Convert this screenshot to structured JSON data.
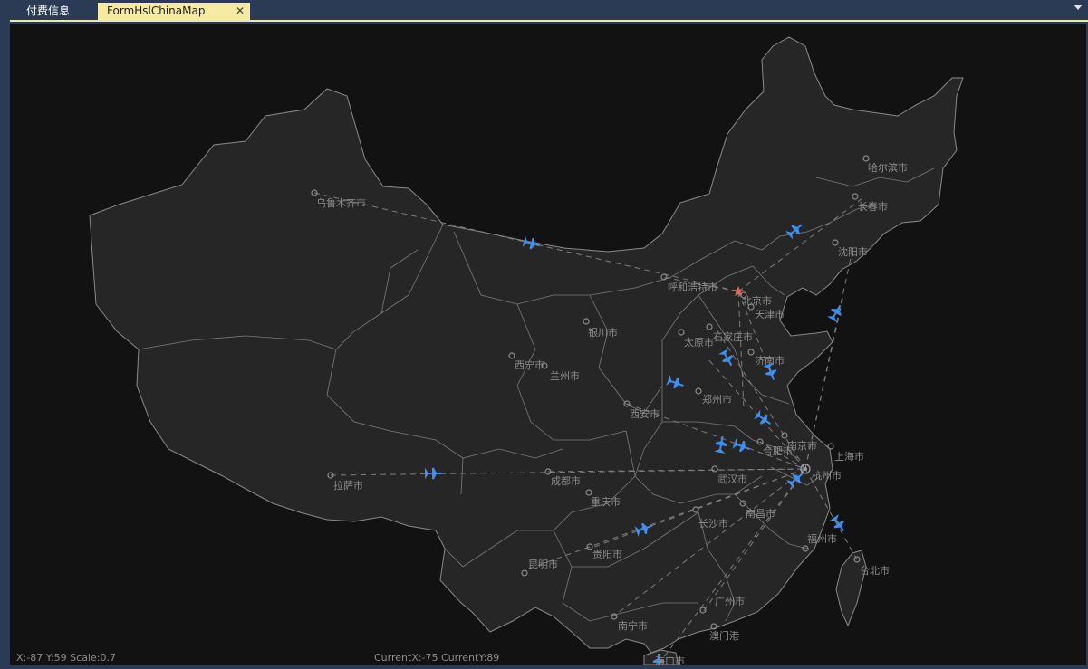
{
  "tabs": [
    {
      "label": "付费信息",
      "active": false
    },
    {
      "label": "FormHslChinaMap",
      "active": true,
      "close": "✕"
    }
  ],
  "map": {
    "capital": {
      "name": "北京市"
    },
    "cities": [
      {
        "name": "乌鲁木齐市"
      },
      {
        "name": "哈尔滨市"
      },
      {
        "name": "长春市"
      },
      {
        "name": "沈阳市"
      },
      {
        "name": "呼和浩特市"
      },
      {
        "name": "北京市"
      },
      {
        "name": "天津市"
      },
      {
        "name": "银川市"
      },
      {
        "name": "石家庄市"
      },
      {
        "name": "太原市"
      },
      {
        "name": "济南市"
      },
      {
        "name": "西宁市"
      },
      {
        "name": "兰州市"
      },
      {
        "name": "郑州市"
      },
      {
        "name": "西安市"
      },
      {
        "name": "南京市"
      },
      {
        "name": "合肥市"
      },
      {
        "name": "上海市"
      },
      {
        "name": "杭州市"
      },
      {
        "name": "拉萨市"
      },
      {
        "name": "成都市"
      },
      {
        "name": "武汉市"
      },
      {
        "name": "重庆市"
      },
      {
        "name": "南昌市"
      },
      {
        "name": "长沙市"
      },
      {
        "name": "福州市"
      },
      {
        "name": "台北市"
      },
      {
        "name": "贵阳市"
      },
      {
        "name": "昆明市"
      },
      {
        "name": "广州市"
      },
      {
        "name": "南宁市"
      },
      {
        "name": "澳门港"
      },
      {
        "name": "海口市"
      }
    ]
  },
  "status": {
    "scale_text": "X:-87 Y:59 Scale:0.7",
    "current_text": "CurrentX:-75 CurrentY:89"
  },
  "colors": {
    "background": "#121213",
    "land": "#262627",
    "border": "#8a8a8a",
    "label": "#8c8c8c",
    "plane": "#3f8ef0",
    "capital_star": "#e06a5a",
    "tab_active": "#f7eaa2",
    "frame": "#2b3a55"
  }
}
